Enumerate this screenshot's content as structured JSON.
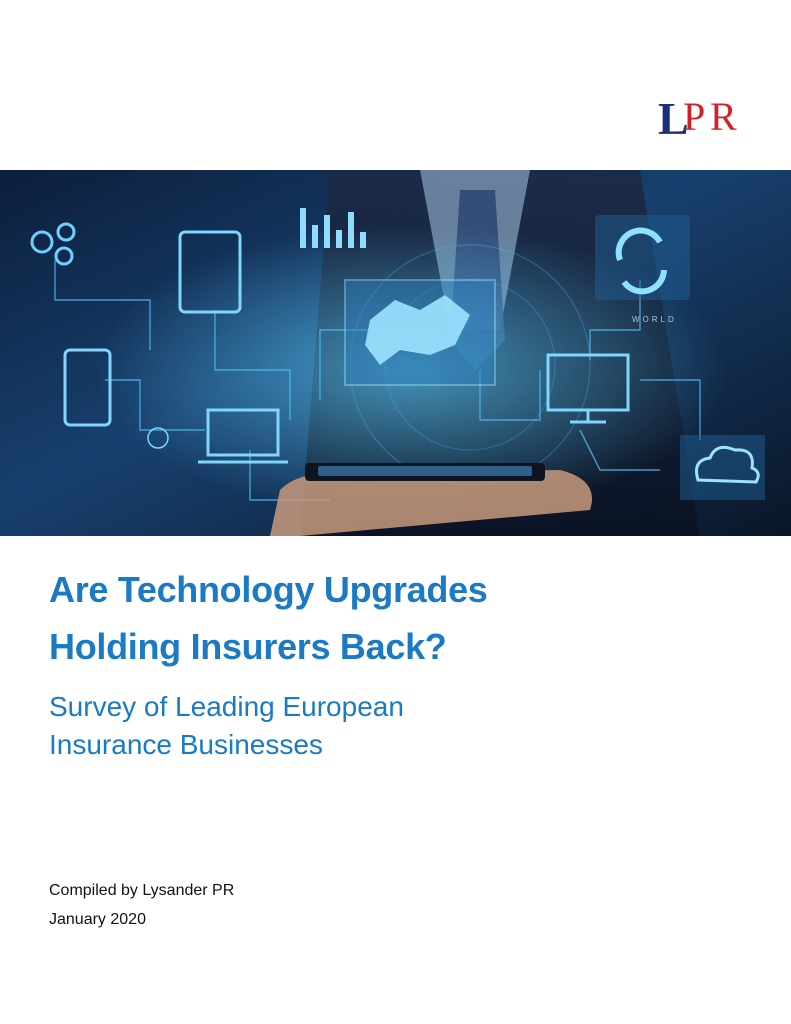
{
  "logo": {
    "text": "LPR",
    "letters": [
      "L",
      "P",
      "R"
    ]
  },
  "hero": {
    "description_label": "WORLD",
    "colors": {
      "glow": "#38b4f0",
      "dark": "#0b1a33",
      "accent": "#1a7ac4",
      "logo_blue": "#1d2f78",
      "logo_red": "#d32027"
    }
  },
  "document": {
    "title_line1": "Are Technology Upgrades",
    "title_line2": "Holding Insurers Back?",
    "subtitle_line1": "Survey of Leading European",
    "subtitle_line2": "Insurance Businesses",
    "compiled_by": "Compiled by Lysander PR",
    "date": "January 2020"
  }
}
